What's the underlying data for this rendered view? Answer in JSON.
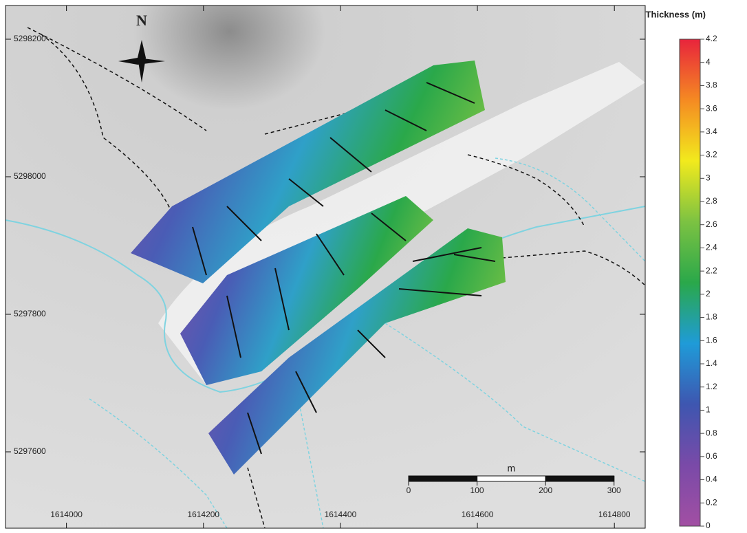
{
  "map": {
    "north_label": "N",
    "eastings": [
      1614000,
      1614200,
      1614400,
      1614600,
      1614800
    ],
    "northings": [
      5298200,
      5298000,
      5297800,
      5297600
    ],
    "xlim": [
      1613911,
      1614845
    ],
    "ylim": [
      5297489,
      5298249
    ],
    "scale_bar": {
      "unit": "m",
      "ticks": [
        0,
        100,
        200,
        300
      ]
    }
  },
  "colorbar": {
    "title": "Thickness (m)",
    "ylim": [
      0,
      4.2
    ],
    "ticks": [
      0,
      0.2,
      0.4,
      0.6,
      0.8,
      1,
      1.2,
      1.4,
      1.6,
      1.8,
      2,
      2.2,
      2.4,
      2.6,
      2.8,
      3,
      3.2,
      3.4,
      3.6,
      3.8,
      4,
      4.2
    ],
    "colors": [
      "#a24fa3",
      "#7a4aa8",
      "#3e56b0",
      "#1f9bd8",
      "#2aa84a",
      "#7cc242",
      "#f2ea1d",
      "#f58a22",
      "#e8243c"
    ]
  }
}
